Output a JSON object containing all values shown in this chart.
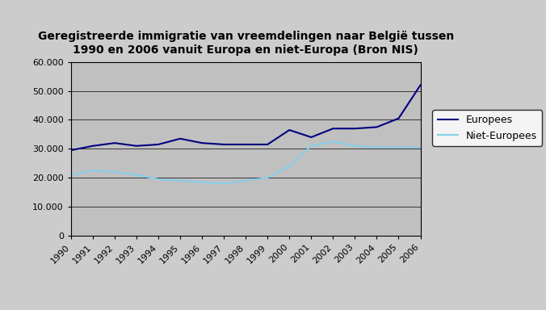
{
  "title": "Geregistreerde immigratie van vreemdelingen naar België tussen\n1990 en 2006 vanuit Europa en niet-Europa (Bron NIS)",
  "years": [
    1990,
    1991,
    1992,
    1993,
    1994,
    1995,
    1996,
    1997,
    1998,
    1999,
    2000,
    2001,
    2002,
    2003,
    2004,
    2005,
    2006
  ],
  "europees": [
    29500,
    31000,
    32000,
    31000,
    31500,
    33500,
    32000,
    31500,
    31500,
    31500,
    36500,
    34000,
    37000,
    37000,
    37500,
    40500,
    52000
  ],
  "niet_europees": [
    21000,
    22500,
    22000,
    21000,
    19500,
    19000,
    18500,
    18000,
    19000,
    20000,
    24000,
    31000,
    32500,
    31000,
    30500,
    30500,
    30500
  ],
  "europees_color": "#000080",
  "niet_europees_color": "#87CEEB",
  "plot_bg_color": "#C0C0C0",
  "outer_bg_left": "#D8D8D8",
  "outer_bg_right": "#B8B8B8",
  "ylim": [
    0,
    60000
  ],
  "yticks": [
    0,
    10000,
    20000,
    30000,
    40000,
    50000,
    60000
  ],
  "ytick_labels": [
    "0",
    "10.000",
    "20.000",
    "30.000",
    "40.000",
    "50.000",
    "60.000"
  ],
  "legend_europees": "Europees",
  "legend_niet_europees": "Niet-Europees",
  "title_fontsize": 10,
  "tick_fontsize": 8,
  "legend_fontsize": 9
}
